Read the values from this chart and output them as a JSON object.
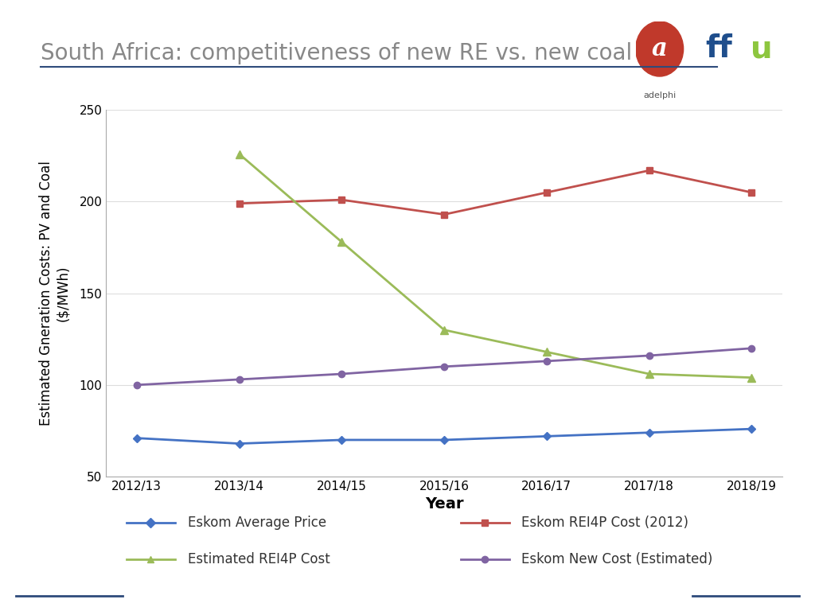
{
  "title": "South Africa: competitiveness of new RE vs. new coal",
  "xlabel": "Year",
  "ylabel": "Estimated Gneration Costs: PV and Coal\n($/MWh)",
  "years": [
    "2012/13",
    "2013/14",
    "2014/15",
    "2015/16",
    "2016/17",
    "2017/18",
    "2018/19"
  ],
  "eskom_avg": [
    71,
    68,
    70,
    70,
    72,
    74,
    76
  ],
  "eskom_rei4p": [
    199,
    201,
    193,
    205,
    217,
    205
  ],
  "estimated_rei4p": [
    226,
    178,
    130,
    118,
    106,
    104
  ],
  "eskom_new": [
    100,
    103,
    106,
    110,
    113,
    116,
    120
  ],
  "eskom_avg_color": "#4472C4",
  "eskom_rei4p_color": "#C0504D",
  "estimated_rei4p_color": "#9BBB59",
  "eskom_new_color": "#8064A2",
  "ylim_min": 50,
  "ylim_max": 250,
  "yticks": [
    50,
    100,
    150,
    200,
    250
  ],
  "background_color": "#FFFFFF",
  "plot_bg_color": "#FFFFFF",
  "legend_labels": [
    "Eskom Average Price",
    "Eskom REI4P Cost (2012)",
    "Estimated REI4P Cost",
    "Eskom New Cost (Estimated)"
  ],
  "title_fontsize": 20,
  "axis_label_fontsize": 12,
  "tick_fontsize": 11,
  "legend_fontsize": 12,
  "title_color": "#808080",
  "header_line_color": "#2E4B7B",
  "footer_line_color": "#2E4B7B"
}
